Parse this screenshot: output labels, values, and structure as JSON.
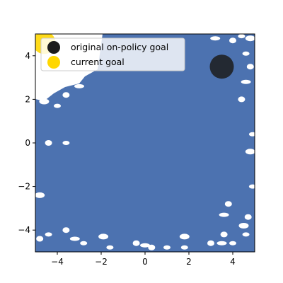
{
  "chart_data": {
    "type": "scatter",
    "xlim": [
      -5,
      5
    ],
    "ylim": [
      -5,
      5
    ],
    "xticks": [
      -4,
      -2,
      0,
      2,
      4
    ],
    "yticks": [
      -4,
      -2,
      0,
      2,
      4
    ],
    "xtick_labels": [
      "−4",
      "−2",
      "0",
      "2",
      "4"
    ],
    "ytick_labels": [
      "−4",
      "−2",
      "0",
      "2",
      "4"
    ],
    "grid": false,
    "legend_placement": "top-left",
    "coverage_color": "#4c72b0",
    "series": [
      {
        "name": "original on-policy goal",
        "color": "#1c1c1c",
        "points": [
          [
            3.5,
            3.5
          ]
        ]
      },
      {
        "name": "current goal",
        "color": "#ffd700",
        "points": [
          [
            -4.6,
            4.6
          ]
        ]
      }
    ],
    "visited_gaps": [
      [
        -4.6,
        1.9
      ],
      [
        -4.0,
        1.7
      ],
      [
        -3.6,
        2.2
      ],
      [
        -3.0,
        2.6
      ],
      [
        -4.4,
        0.0
      ],
      [
        -3.6,
        0.0
      ],
      [
        -4.8,
        -2.4
      ],
      [
        -4.4,
        -4.2
      ],
      [
        -4.8,
        -4.4
      ],
      [
        -3.2,
        -4.4
      ],
      [
        -3.6,
        -4.0
      ],
      [
        -2.8,
        -4.6
      ],
      [
        -1.9,
        -4.3
      ],
      [
        -1.6,
        -4.8
      ],
      [
        -0.4,
        -4.6
      ],
      [
        0.0,
        -4.7
      ],
      [
        0.3,
        -4.8
      ],
      [
        1.0,
        -4.8
      ],
      [
        1.8,
        -4.3
      ],
      [
        1.8,
        -4.8
      ],
      [
        3.0,
        -4.6
      ],
      [
        3.5,
        -4.6
      ],
      [
        3.6,
        -4.2
      ],
      [
        4.6,
        -4.2
      ],
      [
        4.5,
        -3.8
      ],
      [
        4.0,
        -4.6
      ],
      [
        3.8,
        -2.8
      ],
      [
        3.6,
        -3.3
      ],
      [
        4.7,
        -3.4
      ],
      [
        4.9,
        -2.0
      ],
      [
        4.8,
        -0.4
      ],
      [
        4.9,
        0.4
      ],
      [
        4.4,
        2.0
      ],
      [
        4.6,
        2.8
      ],
      [
        4.8,
        3.5
      ],
      [
        4.6,
        4.1
      ],
      [
        4.8,
        4.8
      ],
      [
        4.4,
        4.9
      ],
      [
        4.0,
        4.7
      ],
      [
        3.2,
        4.8
      ]
    ]
  }
}
